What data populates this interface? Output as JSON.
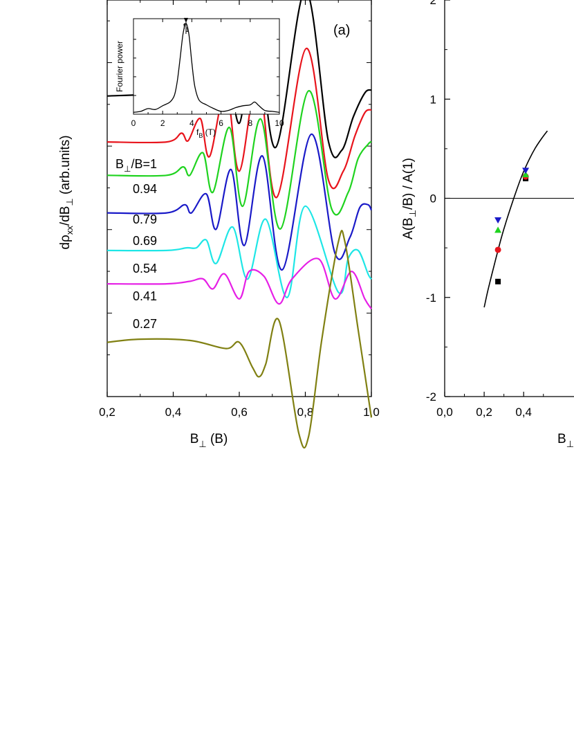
{
  "chart_data": [
    {
      "type": "line",
      "panel_label": "(a)",
      "xlabel": {
        "main": "B",
        "sub": "⊥",
        "rest": " (B)"
      },
      "ylabel": {
        "a": "dρ",
        "a_sub": "xx",
        "b": "/dB",
        "b_sub": "⊥",
        "c": " (arb.units)"
      },
      "xlim": [
        0.2,
        1.0
      ],
      "xticks": [
        "0,2",
        "0,4",
        "0,6",
        "0,8",
        "1,0"
      ],
      "legend_title": {
        "main": "B",
        "sub": "⊥",
        "rest": "/B=1"
      },
      "series": [
        {
          "label": "",
          "color": "#000000",
          "offset": 7.2,
          "amp": 1.45,
          "x": [
            0.2,
            0.38,
            0.42,
            0.445,
            0.48,
            0.51,
            0.555,
            0.6,
            0.65,
            0.71,
            0.8,
            0.87,
            0.91,
            0.945,
            0.98,
            1.0
          ],
          "y": [
            0.0,
            0.05,
            0.18,
            0.05,
            0.45,
            -0.25,
            0.9,
            -0.45,
            1.25,
            -0.85,
            1.75,
            -0.75,
            -0.9,
            -0.35,
            0.05,
            0.1
          ]
        },
        {
          "label": "0.94",
          "color": "#e8141c",
          "offset": 6.1,
          "amp": 1.4,
          "x": [
            0.2,
            0.38,
            0.425,
            0.445,
            0.482,
            0.51,
            0.56,
            0.6,
            0.657,
            0.713,
            0.803,
            0.87,
            0.915,
            0.95,
            0.98,
            1.0
          ],
          "y": [
            0.0,
            0.0,
            0.15,
            0.02,
            0.4,
            -0.25,
            0.9,
            -0.5,
            1.1,
            -0.95,
            1.6,
            -0.65,
            -0.5,
            0.1,
            0.5,
            0.55
          ]
        },
        {
          "label": "0.79",
          "color": "#1fd31f",
          "offset": 5.3,
          "amp": 1.35,
          "x": [
            0.2,
            0.38,
            0.43,
            0.45,
            0.49,
            0.52,
            0.57,
            0.61,
            0.665,
            0.725,
            0.81,
            0.88,
            0.93,
            0.96,
            0.99,
            1.0
          ],
          "y": [
            0.0,
            0.0,
            0.15,
            0.0,
            0.4,
            -0.3,
            0.85,
            -0.55,
            1.0,
            -0.95,
            1.5,
            -0.6,
            -0.3,
            0.3,
            0.55,
            0.6
          ]
        },
        {
          "label": "0.69",
          "color": "#1a1ac8",
          "offset": 4.4,
          "amp": 1.3,
          "x": [
            0.2,
            0.38,
            0.435,
            0.455,
            0.5,
            0.53,
            0.575,
            0.615,
            0.67,
            0.73,
            0.818,
            0.89,
            0.935,
            0.965,
            0.99,
            1.0
          ],
          "y": [
            0.0,
            0.0,
            0.15,
            0.0,
            0.35,
            -0.3,
            0.8,
            -0.6,
            1.05,
            -1.05,
            1.45,
            -0.75,
            -0.45,
            0.1,
            0.15,
            0.05
          ]
        },
        {
          "label": "0.54",
          "color": "#1ee6e6",
          "offset": 3.5,
          "amp": 1.25,
          "x": [
            0.2,
            0.38,
            0.44,
            0.47,
            0.5,
            0.53,
            0.58,
            0.625,
            0.68,
            0.745,
            0.8,
            0.9,
            0.93,
            0.96,
            0.99,
            1.0
          ],
          "y": [
            0.0,
            0.0,
            0.05,
            0.05,
            0.2,
            -0.25,
            0.45,
            -0.55,
            0.6,
            -0.9,
            0.85,
            -0.8,
            -0.15,
            0.0,
            -0.45,
            -0.55
          ]
        },
        {
          "label": "0.41",
          "color": "#e61fe6",
          "offset": 2.7,
          "amp": 1.2,
          "x": [
            0.2,
            0.38,
            0.45,
            0.49,
            0.52,
            0.555,
            0.6,
            0.63,
            0.675,
            0.72,
            0.76,
            0.84,
            0.89,
            0.94,
            0.98,
            1.0
          ],
          "y": [
            0.0,
            0.0,
            0.05,
            0.1,
            -0.1,
            0.2,
            -0.3,
            0.25,
            0.15,
            -0.4,
            0.1,
            0.5,
            -0.3,
            0.25,
            -0.3,
            -0.5
          ]
        },
        {
          "label": "0.27",
          "color": "#808012",
          "offset": 1.3,
          "amp": 1.5,
          "x": [
            0.2,
            0.3,
            0.45,
            0.56,
            0.6,
            0.64,
            0.66,
            0.68,
            0.72,
            0.78,
            0.81,
            0.85,
            0.9,
            0.92,
            0.96,
            1.0
          ],
          "y": [
            0.0,
            0.05,
            0.03,
            -0.1,
            0.0,
            -0.4,
            -0.55,
            -0.35,
            0.35,
            -1.45,
            -1.5,
            0.05,
            1.6,
            1.6,
            0.2,
            -1.2
          ]
        }
      ],
      "inset": {
        "ylabel": "Fourier power",
        "xlabel": {
          "main": "f",
          "sub": "B",
          "rest": " (T)"
        },
        "xlim": [
          0,
          10
        ],
        "xticks": [
          "0",
          "2",
          "4",
          "6",
          "8",
          "10"
        ],
        "peak_label": {
          "main": "f",
          "sub": "1"
        },
        "peak_x": 3.6,
        "x": [
          0,
          0.5,
          1,
          1.5,
          2,
          2.5,
          2.8,
          3.0,
          3.2,
          3.4,
          3.6,
          3.8,
          4.0,
          4.2,
          4.5,
          5.0,
          5.5,
          6.0,
          6.5,
          7.0,
          7.5,
          8.0,
          8.3,
          8.6,
          9.0,
          9.5,
          10
        ],
        "y": [
          0.02,
          0.03,
          0.06,
          0.05,
          0.09,
          0.13,
          0.2,
          0.35,
          0.6,
          0.86,
          0.97,
          0.85,
          0.55,
          0.3,
          0.15,
          0.1,
          0.06,
          0.03,
          0.04,
          0.07,
          0.09,
          0.1,
          0.13,
          0.09,
          0.04,
          0.03,
          0.02
        ]
      }
    },
    {
      "type": "scatter",
      "ylabel": {
        "a": "A(B",
        "a_sub": "⊥",
        "b": "/B) / A(1)"
      },
      "xlabel": {
        "main": "B",
        "sub": "⊥"
      },
      "ylim": [
        -2,
        2
      ],
      "xlim_visible": [
        0.0,
        0.5
      ],
      "xticks": [
        "0,0",
        "0,2",
        "0,4"
      ],
      "yticks": [
        "-2",
        "-1",
        "0",
        "1",
        "2"
      ],
      "points": [
        {
          "shape": "square",
          "color": "#000000",
          "x": 0.27,
          "y": -0.84
        },
        {
          "shape": "circle",
          "color": "#e8141c",
          "x": 0.27,
          "y": -0.52
        },
        {
          "shape": "triangle-up",
          "color": "#1fd31f",
          "x": 0.27,
          "y": -0.32
        },
        {
          "shape": "triangle-down",
          "color": "#1a1ac8",
          "x": 0.27,
          "y": -0.22
        },
        {
          "shape": "square",
          "color": "#000000",
          "x": 0.41,
          "y": 0.2
        },
        {
          "shape": "circle",
          "color": "#e8141c",
          "x": 0.41,
          "y": 0.22
        },
        {
          "shape": "triangle-up",
          "color": "#1fd31f",
          "x": 0.41,
          "y": 0.24
        },
        {
          "shape": "triangle-down",
          "color": "#1a1ac8",
          "x": 0.41,
          "y": 0.28
        }
      ],
      "fit_curve": {
        "x": [
          0.2,
          0.22,
          0.25,
          0.28,
          0.3,
          0.32,
          0.35,
          0.38,
          0.4,
          0.43,
          0.46,
          0.49,
          0.52
        ],
        "y": [
          -1.1,
          -0.92,
          -0.68,
          -0.45,
          -0.31,
          -0.18,
          0.0,
          0.17,
          0.27,
          0.4,
          0.51,
          0.6,
          0.68
        ]
      }
    }
  ]
}
